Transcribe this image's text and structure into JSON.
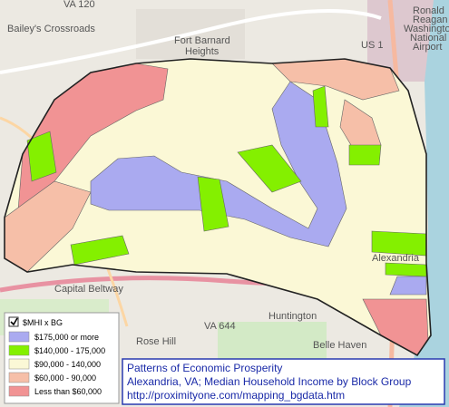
{
  "map_labels": [
    "Bailey's Crossroads",
    "Fort Barnard",
    "Heights",
    "Huntington",
    "Rose Hill",
    "Belle Haven",
    "Alexandria",
    "Ronald",
    "Reagan",
    "Washington",
    "National",
    "Airport",
    "US 1",
    "VA 120",
    "VA 644",
    "Capital Beltway"
  ],
  "legend": {
    "title": "$MHI x BG",
    "checked": true,
    "items": [
      {
        "label": "$175,000 or more",
        "color": "#aaaaf0"
      },
      {
        "label": "$140,000 - 175,000",
        "color": "#84f000"
      },
      {
        "label": "$90,000 - 140,000",
        "color": "#fbf8d6"
      },
      {
        "label": "$60,000 - 90,000",
        "color": "#f6bfa8"
      },
      {
        "label": "Less than $60,000",
        "color": "#f19394"
      }
    ]
  },
  "info_box": {
    "lines": [
      "Patterns of Economic Prosperity",
      "Alexandria, VA; Median Household Income by Block Group",
      "http://proximityone.com/mapping_bgdata.htm"
    ]
  }
}
